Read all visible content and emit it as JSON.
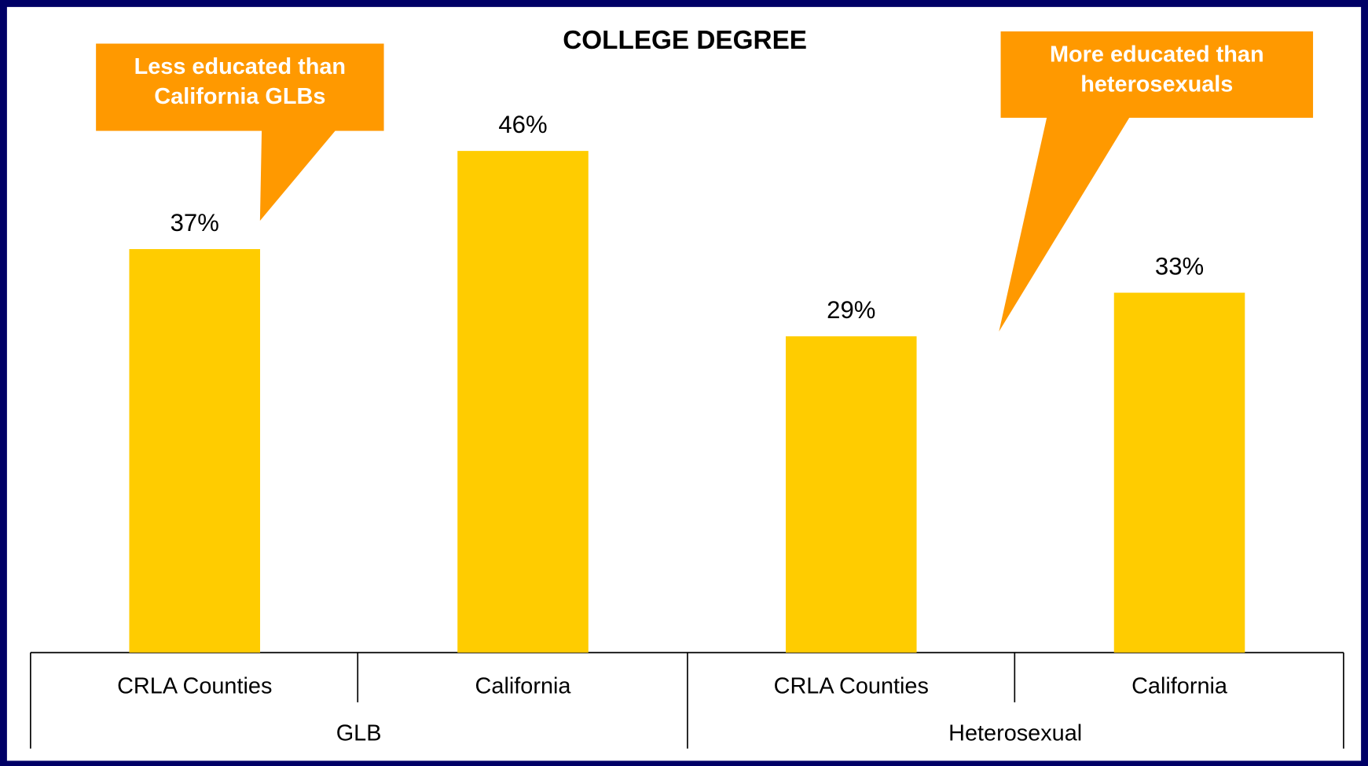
{
  "chart_data": {
    "type": "bar",
    "title": "COLLEGE DEGREE",
    "categories": [
      "CRLA Counties",
      "California",
      "CRLA Counties",
      "California"
    ],
    "groups": [
      "GLB",
      "Heterosexual"
    ],
    "values": [
      37,
      46,
      29,
      33
    ],
    "value_labels": [
      "37%",
      "46%",
      "29%",
      "33%"
    ],
    "color": "#ffcc00",
    "annotations": [
      {
        "lines": [
          "Less educated than",
          "California GLBs"
        ]
      },
      {
        "lines": [
          "More educated than",
          "heterosexuals"
        ]
      }
    ]
  }
}
